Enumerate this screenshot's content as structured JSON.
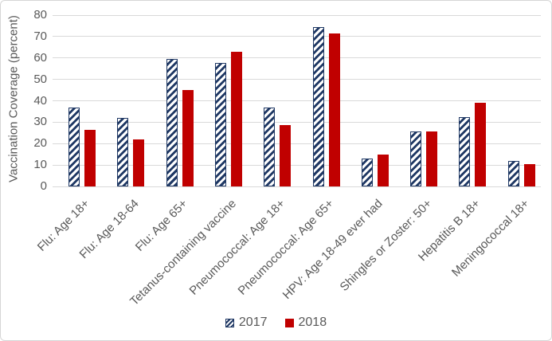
{
  "chart_data": {
    "type": "bar",
    "title": "",
    "xlabel": "",
    "ylabel": "Vaccination Coverage (percent)",
    "ylim": [
      0,
      80
    ],
    "yticks": [
      0,
      10,
      20,
      30,
      40,
      50,
      60,
      70,
      80
    ],
    "grid": true,
    "legend_position": "bottom",
    "categories": [
      "Flu: Age 18+",
      "Flu: Age 18-64",
      "Flu: Age 65+",
      "Tetanus-containing vaccine",
      "Pneumococcal: Age 18+",
      "Pneumococcal: Age 65+",
      "HPV: Age 18-49 ever had",
      "Shingles or Zoster: 50+",
      "Hepatitis B 18+",
      "Meningococcal 18+"
    ],
    "series": [
      {
        "name": "2017",
        "style": "hatched-diagonal",
        "color": "#1F3864",
        "values": [
          37,
          32,
          59.5,
          57.5,
          37,
          74.5,
          13,
          25.5,
          32.5,
          12
        ]
      },
      {
        "name": "2018",
        "style": "solid",
        "color": "#C00000",
        "values": [
          26.5,
          22,
          45,
          63,
          28.5,
          71.5,
          15,
          25.5,
          39,
          10.5
        ]
      }
    ]
  },
  "colors": {
    "gridline": "#D9D9D9",
    "axis_text": "#595959",
    "chart_border": "#D6D6D6",
    "background": "#FFFFFF"
  }
}
